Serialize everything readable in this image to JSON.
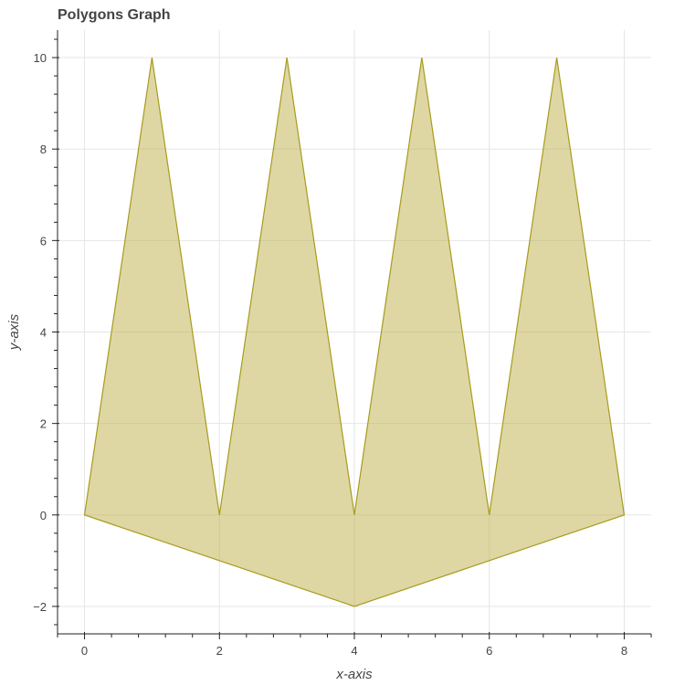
{
  "chart_data": {
    "type": "area",
    "title": "Polygons Graph",
    "xlabel": "x-axis",
    "ylabel": "y-axis",
    "xlim": [
      -0.4,
      8.4
    ],
    "ylim": [
      -2.6,
      10.6
    ],
    "xticks": [
      0,
      2,
      4,
      6,
      8
    ],
    "yticks": [
      -2,
      0,
      2,
      4,
      6,
      8,
      10
    ],
    "xtick_labels": [
      "0",
      "2",
      "4",
      "6",
      "8"
    ],
    "ytick_labels": [
      "−2",
      "0",
      "2",
      "4",
      "6",
      "8",
      "10"
    ],
    "grid": true,
    "series": [
      {
        "x": [
          0,
          1,
          2,
          3,
          4,
          5,
          6,
          7,
          8,
          4,
          0
        ],
        "y": [
          0,
          10,
          0,
          10,
          0,
          10,
          0,
          10,
          0,
          -2,
          0
        ],
        "fill_color": "#bdb04a",
        "fill_alpha": 0.5,
        "line_color": "#a89b1c"
      }
    ]
  }
}
